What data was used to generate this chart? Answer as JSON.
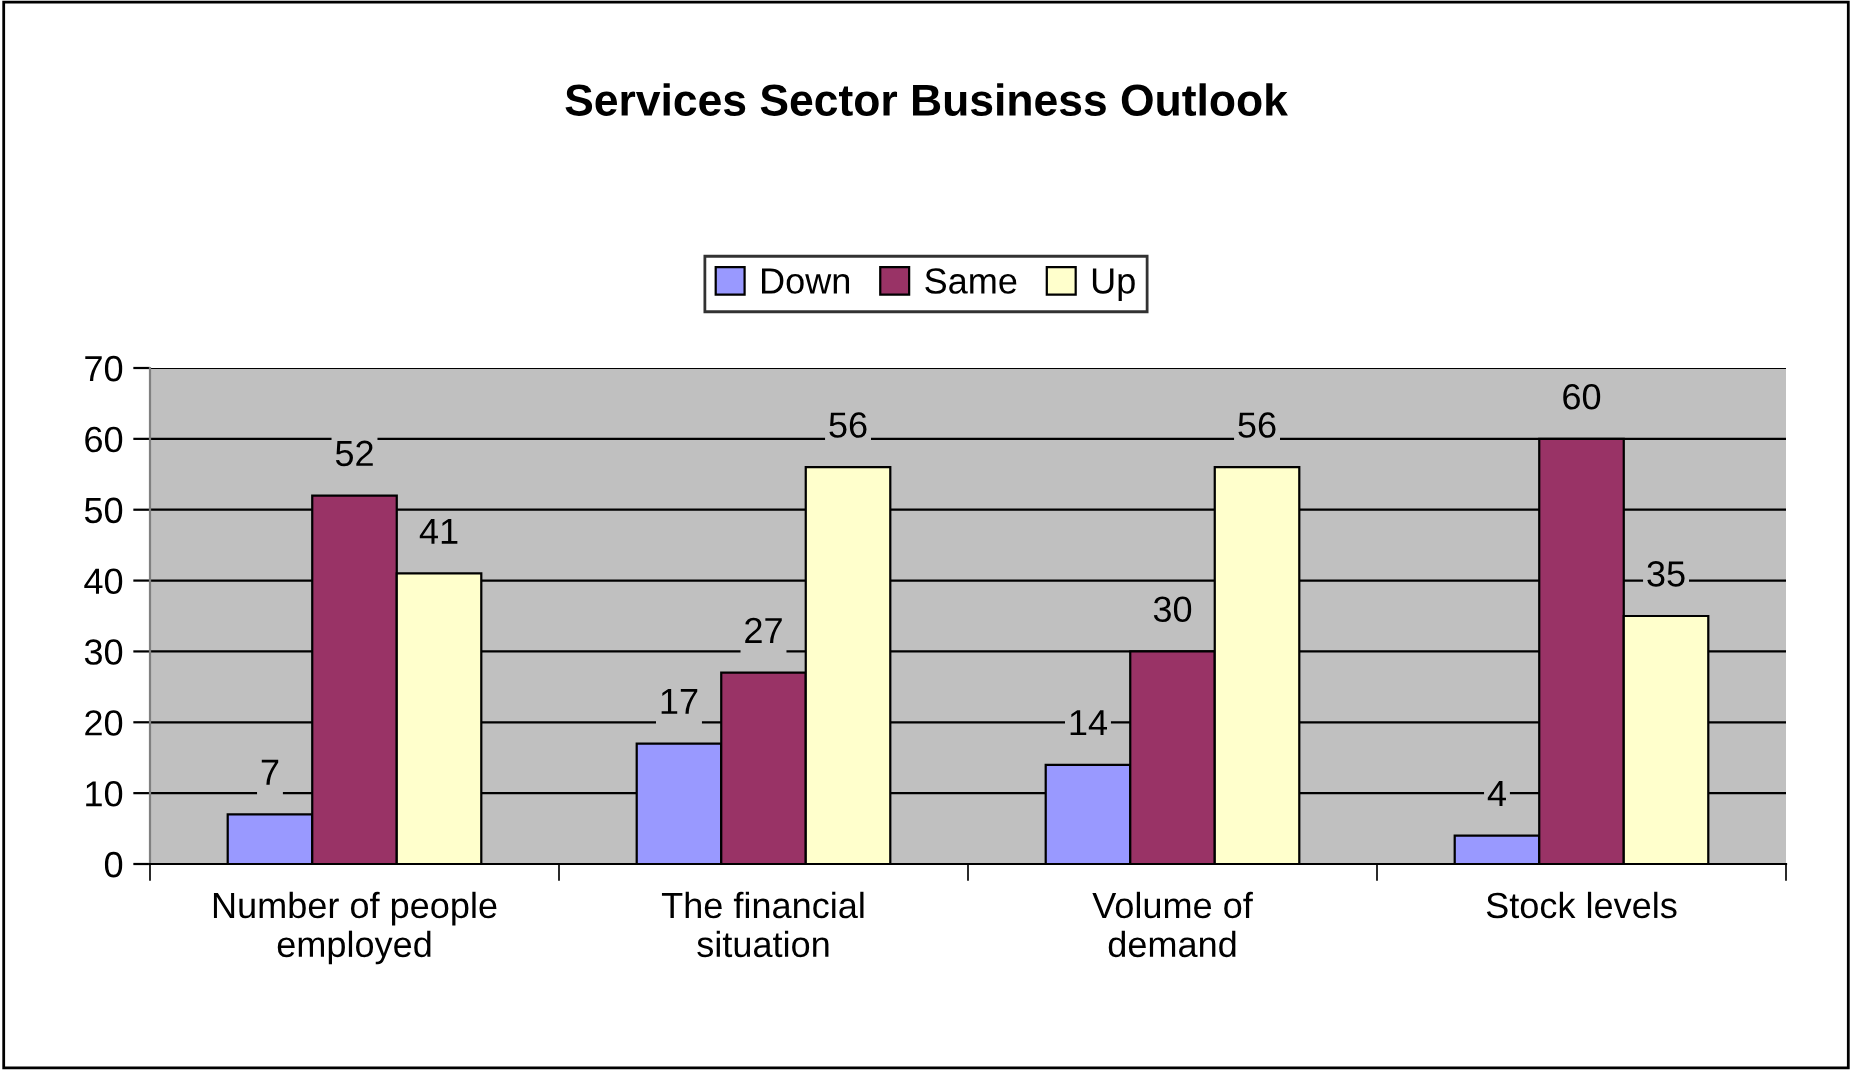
{
  "chart_data": {
    "type": "bar",
    "title": "Services Sector Business Outlook",
    "categories": [
      "Number of people\nemployed",
      "The financial\nsituation",
      "Volume of\ndemand",
      "Stock levels"
    ],
    "series": [
      {
        "name": "Down",
        "color": "#9999ff",
        "values": [
          7,
          17,
          14,
          4
        ]
      },
      {
        "name": "Same",
        "color": "#993366",
        "values": [
          52,
          27,
          30,
          60
        ]
      },
      {
        "name": "Up",
        "color": "#ffffcc",
        "values": [
          41,
          56,
          56,
          35
        ]
      }
    ],
    "ylim": [
      0,
      70
    ],
    "yticks": [
      0,
      10,
      20,
      30,
      40,
      50,
      60,
      70
    ],
    "grid": "y",
    "legend": "top",
    "data_labels": true
  }
}
